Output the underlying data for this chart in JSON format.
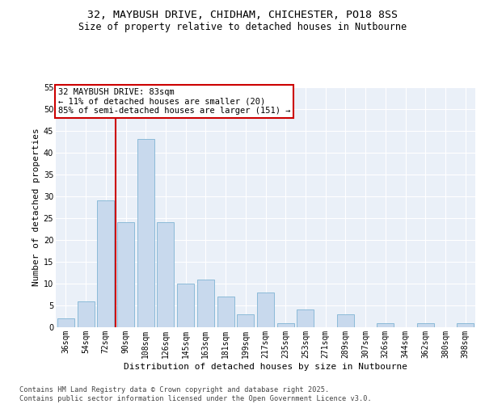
{
  "title_line1": "32, MAYBUSH DRIVE, CHIDHAM, CHICHESTER, PO18 8SS",
  "title_line2": "Size of property relative to detached houses in Nutbourne",
  "xlabel": "Distribution of detached houses by size in Nutbourne",
  "ylabel": "Number of detached properties",
  "categories": [
    "36sqm",
    "54sqm",
    "72sqm",
    "90sqm",
    "108sqm",
    "126sqm",
    "145sqm",
    "163sqm",
    "181sqm",
    "199sqm",
    "217sqm",
    "235sqm",
    "253sqm",
    "271sqm",
    "289sqm",
    "307sqm",
    "326sqm",
    "344sqm",
    "362sqm",
    "380sqm",
    "398sqm"
  ],
  "values": [
    2,
    6,
    29,
    24,
    43,
    24,
    10,
    11,
    7,
    3,
    8,
    1,
    4,
    0,
    3,
    0,
    1,
    0,
    1,
    0,
    1
  ],
  "bar_color": "#c8d9ed",
  "bar_edge_color": "#7fb3d3",
  "vline_color": "#cc0000",
  "vline_x_index": 2.5,
  "annotation_text": "32 MAYBUSH DRIVE: 83sqm\n← 11% of detached houses are smaller (20)\n85% of semi-detached houses are larger (151) →",
  "annotation_box_facecolor": "#ffffff",
  "annotation_box_edgecolor": "#cc0000",
  "ylim": [
    0,
    55
  ],
  "yticks": [
    0,
    5,
    10,
    15,
    20,
    25,
    30,
    35,
    40,
    45,
    50,
    55
  ],
  "background_color": "#eaf0f8",
  "grid_color": "#ffffff",
  "footer_text": "Contains HM Land Registry data © Crown copyright and database right 2025.\nContains public sector information licensed under the Open Government Licence v3.0.",
  "title_fontsize": 9.5,
  "subtitle_fontsize": 8.5,
  "axis_label_fontsize": 8,
  "tick_fontsize": 7,
  "annotation_fontsize": 7.5,
  "footer_fontsize": 6.2
}
